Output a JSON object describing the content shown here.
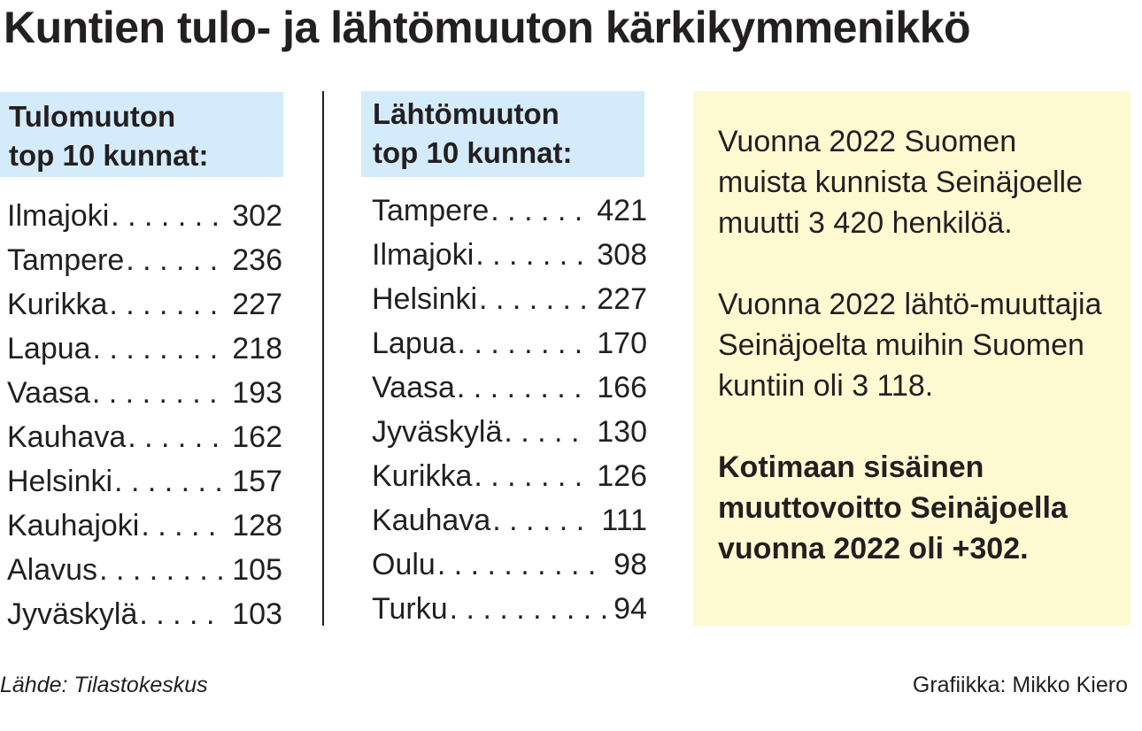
{
  "title": "Kuntien tulo- ja lähtömuuton kärkikymmenikkö",
  "incoming": {
    "heading_line1": "Tulomuuton",
    "heading_line2": "top 10 kunnat:",
    "rows": [
      {
        "name": "Ilmajoki",
        "value": "302"
      },
      {
        "name": "Tampere",
        "value": "236"
      },
      {
        "name": "Kurikka",
        "value": "227"
      },
      {
        "name": "Lapua",
        "value": "218"
      },
      {
        "name": "Vaasa",
        "value": "193"
      },
      {
        "name": "Kauhava",
        "value": "162"
      },
      {
        "name": "Helsinki",
        "value": "157"
      },
      {
        "name": "Kauhajoki",
        "value": "128"
      },
      {
        "name": "Alavus",
        "value": "105"
      },
      {
        "name": "Jyväskylä",
        "value": "103"
      }
    ]
  },
  "outgoing": {
    "heading_line1": "Lähtömuuton",
    "heading_line2": "top 10 kunnat:",
    "rows": [
      {
        "name": "Tampere",
        "value": "421"
      },
      {
        "name": "Ilmajoki",
        "value": "308"
      },
      {
        "name": "Helsinki",
        "value": "227"
      },
      {
        "name": "Lapua",
        "value": "170"
      },
      {
        "name": "Vaasa",
        "value": "166"
      },
      {
        "name": "Jyväskylä",
        "value": "130"
      },
      {
        "name": "Kurikka",
        "value": "126"
      },
      {
        "name": "Kauhava",
        "value": "111"
      },
      {
        "name": "Oulu",
        "value": "98"
      },
      {
        "name": "Turku",
        "value": "94"
      }
    ]
  },
  "info": {
    "paragraph1": "Vuonna 2022 Suomen muista kunnista Seinäjoelle muutti 3 420 henkilöä.",
    "paragraph2": "Vuonna 2022 lähtö-muuttajia Seinäjoelta muihin Suomen kuntiin oli 3 118.",
    "paragraph3": "Kotimaan sisäinen muuttovoitto Seinäjoella vuonna 2022 oli +302."
  },
  "footer": {
    "source": "Lähde: Tilastokeskus",
    "credit": "Grafiikka: Mikko Kiero"
  },
  "colors": {
    "heading_bg": "#d4ebfb",
    "info_bg": "#fff9d2",
    "text": "#231f20"
  }
}
